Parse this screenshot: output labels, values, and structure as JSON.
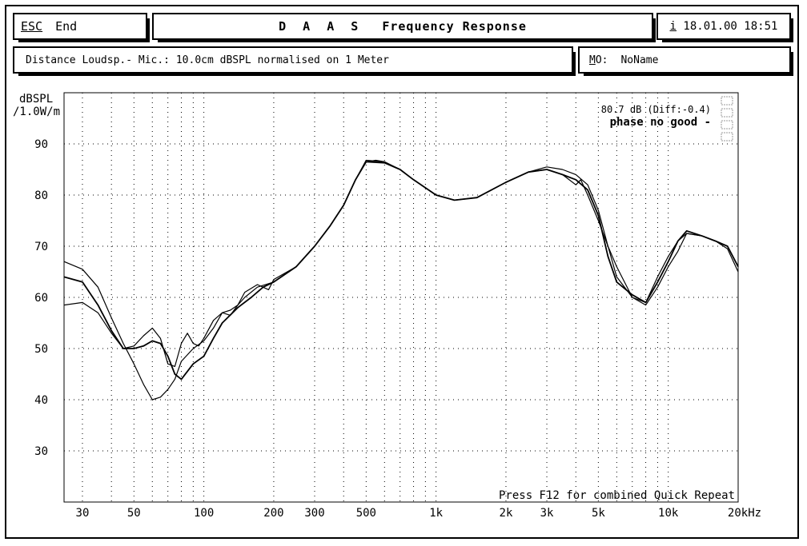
{
  "header": {
    "esc_key": "ESC",
    "esc_label": "End",
    "title_prefix": "D A A S",
    "title_main": "Frequency Response",
    "info_key": "i",
    "datetime": "18.01.00 18:51"
  },
  "subheader": {
    "distance_text": "Distance Loudsp.- Mic.: 10.0cm dBSPL normalised on 1 Meter",
    "mo_key": "M",
    "mo_suffix": "O:",
    "mo_value": "NoName"
  },
  "chart_data": {
    "type": "line",
    "xscale": "log",
    "xlim": [
      25,
      20000
    ],
    "ylim": [
      20,
      100
    ],
    "grid": true,
    "ylabel_line1": "dBSPL",
    "ylabel_line2": "/1.0W/m",
    "xunit": "20kHz",
    "y_ticks": [
      {
        "v": 90,
        "label": "90"
      },
      {
        "v": 80,
        "label": "80"
      },
      {
        "v": 70,
        "label": "70"
      },
      {
        "v": 60,
        "label": "60"
      },
      {
        "v": 50,
        "label": "50"
      },
      {
        "v": 40,
        "label": "40"
      },
      {
        "v": 30,
        "label": "30"
      }
    ],
    "x_ticks": [
      {
        "v": 30,
        "label": "30"
      },
      {
        "v": 50,
        "label": "50"
      },
      {
        "v": 100,
        "label": "100"
      },
      {
        "v": 200,
        "label": "200"
      },
      {
        "v": 300,
        "label": "300"
      },
      {
        "v": 500,
        "label": "500"
      },
      {
        "v": 1000,
        "label": "1k"
      },
      {
        "v": 2000,
        "label": "2k"
      },
      {
        "v": 3000,
        "label": "3k"
      },
      {
        "v": 5000,
        "label": "5k"
      },
      {
        "v": 10000,
        "label": "10k"
      }
    ],
    "annotations": {
      "level": "80.7 dB (Diff:-0.4)",
      "phase": "phase no good -",
      "hint": "Press F12 for combined Quick Repeat"
    },
    "series": [
      {
        "values": [
          [
            25,
            67
          ],
          [
            30,
            65.5
          ],
          [
            35,
            62
          ],
          [
            40,
            56
          ],
          [
            45,
            51
          ],
          [
            50,
            47
          ],
          [
            55,
            43
          ],
          [
            60,
            40
          ],
          [
            65,
            40.5
          ],
          [
            70,
            42
          ],
          [
            75,
            44
          ],
          [
            80,
            47.5
          ],
          [
            90,
            50
          ],
          [
            100,
            51.5
          ],
          [
            110,
            54
          ],
          [
            120,
            57
          ],
          [
            130,
            57.5
          ],
          [
            140,
            58.5
          ],
          [
            150,
            60
          ],
          [
            170,
            62
          ],
          [
            200,
            63
          ],
          [
            250,
            66
          ],
          [
            300,
            70
          ],
          [
            350,
            74
          ],
          [
            400,
            78
          ],
          [
            450,
            83
          ],
          [
            500,
            86.5
          ],
          [
            550,
            86.8
          ],
          [
            600,
            86.5
          ],
          [
            700,
            85
          ],
          [
            800,
            83
          ],
          [
            1000,
            80
          ],
          [
            1200,
            79
          ],
          [
            1500,
            79.5
          ],
          [
            2000,
            82.5
          ],
          [
            2500,
            84.5
          ],
          [
            3000,
            85.5
          ],
          [
            3500,
            85
          ],
          [
            4000,
            84
          ],
          [
            4500,
            82
          ],
          [
            5000,
            77
          ],
          [
            5500,
            70
          ],
          [
            6000,
            64
          ],
          [
            7000,
            60
          ],
          [
            8000,
            59
          ],
          [
            9000,
            64
          ],
          [
            10000,
            68
          ],
          [
            11000,
            71
          ],
          [
            12000,
            72.5
          ],
          [
            14000,
            72
          ],
          [
            16000,
            71
          ],
          [
            18000,
            70
          ],
          [
            20000,
            66
          ]
        ]
      },
      {
        "values": [
          [
            25,
            64
          ],
          [
            30,
            63
          ],
          [
            35,
            58.5
          ],
          [
            40,
            53.5
          ],
          [
            45,
            50
          ],
          [
            50,
            50
          ],
          [
            55,
            50.5
          ],
          [
            60,
            51.5
          ],
          [
            65,
            51
          ],
          [
            70,
            48.5
          ],
          [
            75,
            45
          ],
          [
            80,
            44
          ],
          [
            90,
            47
          ],
          [
            100,
            48.5
          ],
          [
            110,
            52
          ],
          [
            120,
            55
          ],
          [
            140,
            58
          ],
          [
            160,
            60
          ],
          [
            180,
            62
          ],
          [
            200,
            63
          ],
          [
            250,
            66
          ],
          [
            300,
            70
          ],
          [
            350,
            74
          ],
          [
            400,
            78
          ],
          [
            450,
            83
          ],
          [
            500,
            86.5
          ],
          [
            600,
            86.3
          ],
          [
            700,
            85
          ],
          [
            800,
            83
          ],
          [
            1000,
            80
          ],
          [
            1200,
            79
          ],
          [
            1500,
            79.5
          ],
          [
            2000,
            82.5
          ],
          [
            2500,
            84.5
          ],
          [
            3000,
            85
          ],
          [
            3500,
            84
          ],
          [
            4000,
            83
          ],
          [
            4500,
            81
          ],
          [
            5000,
            76
          ],
          [
            5500,
            68
          ],
          [
            6000,
            63
          ],
          [
            7000,
            60.5
          ],
          [
            8000,
            59
          ],
          [
            9000,
            63
          ],
          [
            10000,
            67
          ],
          [
            11000,
            71
          ],
          [
            12000,
            73
          ],
          [
            14000,
            72
          ],
          [
            16000,
            71
          ],
          [
            18000,
            70
          ],
          [
            20000,
            66
          ]
        ]
      },
      {
        "values": [
          [
            25,
            58.5
          ],
          [
            30,
            59
          ],
          [
            35,
            57
          ],
          [
            40,
            53
          ],
          [
            45,
            50
          ],
          [
            50,
            50.5
          ],
          [
            55,
            52.5
          ],
          [
            60,
            54
          ],
          [
            65,
            52
          ],
          [
            70,
            47
          ],
          [
            75,
            46.5
          ],
          [
            80,
            51
          ],
          [
            85,
            53
          ],
          [
            90,
            51
          ],
          [
            95,
            50.5
          ],
          [
            100,
            52
          ],
          [
            110,
            55.5
          ],
          [
            120,
            57
          ],
          [
            130,
            56.5
          ],
          [
            140,
            58.5
          ],
          [
            150,
            61
          ],
          [
            170,
            62.5
          ],
          [
            190,
            61.5
          ],
          [
            200,
            63.5
          ],
          [
            250,
            66
          ],
          [
            300,
            70
          ],
          [
            350,
            74
          ],
          [
            400,
            78
          ],
          [
            450,
            83
          ],
          [
            500,
            86.8
          ],
          [
            600,
            86.5
          ],
          [
            700,
            85
          ],
          [
            800,
            83
          ],
          [
            1000,
            80
          ],
          [
            1200,
            79
          ],
          [
            1500,
            79.5
          ],
          [
            2000,
            82.5
          ],
          [
            2500,
            84.5
          ],
          [
            3000,
            85
          ],
          [
            3500,
            84
          ],
          [
            4000,
            82
          ],
          [
            4200,
            83
          ],
          [
            4500,
            80
          ],
          [
            5000,
            75
          ],
          [
            5500,
            70
          ],
          [
            6000,
            66
          ],
          [
            7000,
            60
          ],
          [
            8000,
            58.5
          ],
          [
            9000,
            62
          ],
          [
            10000,
            66
          ],
          [
            11000,
            69
          ],
          [
            12000,
            72.5
          ],
          [
            14000,
            72
          ],
          [
            16000,
            71
          ],
          [
            18000,
            69.5
          ],
          [
            20000,
            65
          ]
        ]
      }
    ]
  }
}
